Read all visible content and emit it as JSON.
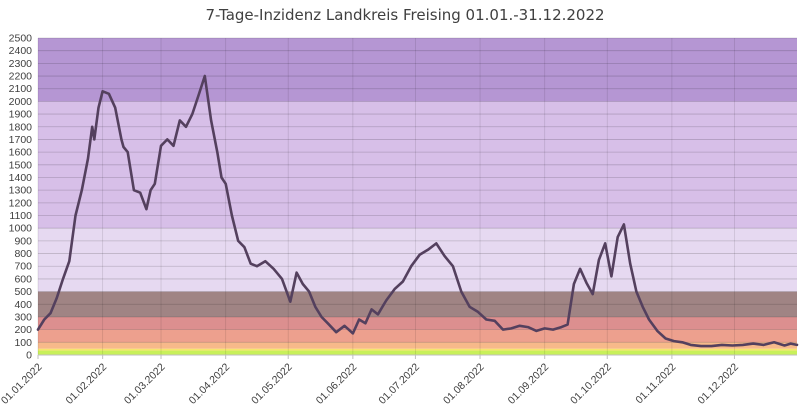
{
  "chart_data": {
    "type": "line",
    "title": "7-Tage-Inzidenz Landkreis Freising 01.01.-31.12.2022",
    "xlabel": "",
    "ylabel": "",
    "ylim": [
      0,
      2500
    ],
    "y_ticks": [
      0,
      100,
      200,
      300,
      400,
      500,
      600,
      700,
      800,
      900,
      1000,
      1100,
      1200,
      1300,
      1400,
      1500,
      1600,
      1700,
      1800,
      1900,
      2000,
      2100,
      2200,
      2300,
      2400,
      2500
    ],
    "x_ticks": [
      "01.01.2022",
      "01.02.2022",
      "01.03.2022",
      "01.04.2022",
      "01.05.2022",
      "01.06.2022",
      "01.07.2022",
      "01.08.2022",
      "01.09.2022",
      "01.10.2022",
      "01.11.2022",
      "01.12.2022"
    ],
    "grid": true,
    "legend": "none",
    "background_bands": [
      {
        "from": 0,
        "to": 35,
        "color": "#c8f05a"
      },
      {
        "from": 35,
        "to": 50,
        "color": "#f5e66e"
      },
      {
        "from": 50,
        "to": 100,
        "color": "#f7b98a"
      },
      {
        "from": 100,
        "to": 200,
        "color": "#eda08e"
      },
      {
        "from": 200,
        "to": 300,
        "color": "#dc8f8f"
      },
      {
        "from": 300,
        "to": 500,
        "color": "#a08484"
      },
      {
        "from": 500,
        "to": 1000,
        "color": "#e6d9f1"
      },
      {
        "from": 1000,
        "to": 2000,
        "color": "#d7bfe8"
      },
      {
        "from": 2000,
        "to": 2500,
        "color": "#b596d3"
      }
    ],
    "line_color": "#54405e",
    "series": [
      {
        "x": [
          "2022-01-01",
          "2022-01-04",
          "2022-01-07",
          "2022-01-10",
          "2022-01-13",
          "2022-01-16",
          "2022-01-19",
          "2022-01-22",
          "2022-01-25",
          "2022-01-27",
          "2022-01-28",
          "2022-01-30",
          "2022-02-01",
          "2022-02-04",
          "2022-02-07",
          "2022-02-10",
          "2022-02-11",
          "2022-02-13",
          "2022-02-16",
          "2022-02-19",
          "2022-02-22",
          "2022-02-24",
          "2022-02-26",
          "2022-03-01",
          "2022-03-04",
          "2022-03-07",
          "2022-03-10",
          "2022-03-13",
          "2022-03-16",
          "2022-03-19",
          "2022-03-22",
          "2022-03-25",
          "2022-03-28",
          "2022-03-30",
          "2022-04-01",
          "2022-04-04",
          "2022-04-07",
          "2022-04-10",
          "2022-04-13",
          "2022-04-16",
          "2022-04-20",
          "2022-04-24",
          "2022-04-28",
          "2022-05-02",
          "2022-05-05",
          "2022-05-08",
          "2022-05-11",
          "2022-05-14",
          "2022-05-17",
          "2022-05-20",
          "2022-05-24",
          "2022-05-28",
          "2022-06-01",
          "2022-06-04",
          "2022-06-07",
          "2022-06-10",
          "2022-06-13",
          "2022-06-17",
          "2022-06-21",
          "2022-06-25",
          "2022-06-29",
          "2022-07-03",
          "2022-07-07",
          "2022-07-11",
          "2022-07-15",
          "2022-07-19",
          "2022-07-23",
          "2022-07-27",
          "2022-07-31",
          "2022-08-04",
          "2022-08-08",
          "2022-08-12",
          "2022-08-16",
          "2022-08-20",
          "2022-08-24",
          "2022-08-28",
          "2022-09-01",
          "2022-09-05",
          "2022-09-09",
          "2022-09-12",
          "2022-09-15",
          "2022-09-18",
          "2022-09-21",
          "2022-09-24",
          "2022-09-27",
          "2022-09-30",
          "2022-10-03",
          "2022-10-06",
          "2022-10-09",
          "2022-10-12",
          "2022-10-15",
          "2022-10-18",
          "2022-10-21",
          "2022-10-25",
          "2022-10-29",
          "2022-11-02",
          "2022-11-06",
          "2022-11-10",
          "2022-11-15",
          "2022-11-20",
          "2022-11-25",
          "2022-11-30",
          "2022-12-05",
          "2022-12-10",
          "2022-12-15",
          "2022-12-20",
          "2022-12-25",
          "2022-12-28",
          "2022-12-31"
        ],
        "y": [
          200,
          280,
          330,
          450,
          600,
          740,
          1100,
          1300,
          1550,
          1800,
          1700,
          1950,
          2080,
          2060,
          1950,
          1700,
          1640,
          1600,
          1300,
          1280,
          1150,
          1300,
          1350,
          1650,
          1700,
          1650,
          1850,
          1800,
          1900,
          2050,
          2200,
          1850,
          1600,
          1400,
          1350,
          1100,
          900,
          850,
          720,
          700,
          740,
          680,
          600,
          420,
          650,
          560,
          500,
          380,
          300,
          250,
          180,
          230,
          170,
          280,
          250,
          360,
          320,
          430,
          520,
          580,
          700,
          790,
          830,
          880,
          780,
          700,
          500,
          380,
          340,
          280,
          270,
          200,
          210,
          230,
          220,
          190,
          210,
          200,
          220,
          240,
          560,
          680,
          570,
          480,
          750,
          880,
          620,
          930,
          1030,
          720,
          500,
          380,
          280,
          190,
          130,
          110,
          100,
          80,
          70,
          70,
          80,
          75,
          80,
          90,
          80,
          100,
          75,
          90,
          80
        ]
      }
    ]
  }
}
